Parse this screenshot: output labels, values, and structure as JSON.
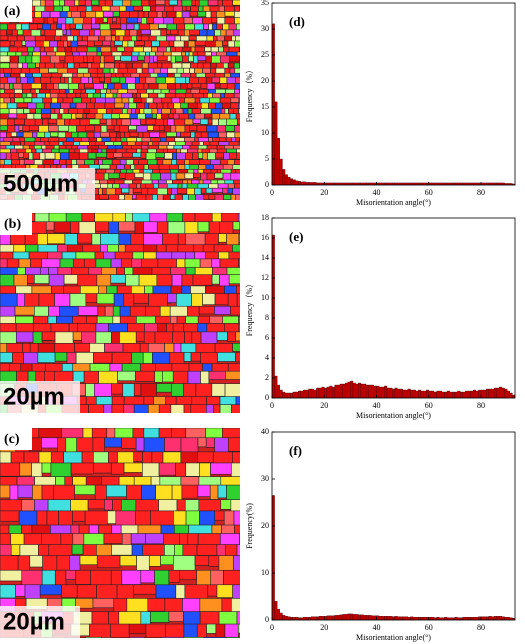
{
  "maps": [
    {
      "label": "(a)",
      "scale_bar": "500µm"
    },
    {
      "label": "(b)",
      "scale_bar": "20µm"
    },
    {
      "label": "(c)",
      "scale_bar": "20µm"
    }
  ],
  "chart_data": [
    {
      "type": "histogram",
      "panel": "(d)",
      "xlabel": "Misorientation angle(°)",
      "ylabel": "Frequency（%）",
      "color": "#c00000",
      "xlim": [
        0,
        93
      ],
      "xticks": [
        0,
        20,
        40,
        60,
        80
      ],
      "ylim": [
        0,
        35
      ],
      "yticks": [
        0,
        5,
        10,
        15,
        20,
        25,
        30,
        35
      ],
      "bins": [
        0,
        1,
        2,
        3,
        4,
        5,
        6,
        7,
        8,
        9,
        10,
        11,
        12,
        13,
        14,
        15,
        16,
        17,
        18,
        19,
        20,
        21,
        22,
        23,
        24,
        25,
        26,
        27,
        28,
        29,
        30,
        31,
        32,
        33,
        34,
        35,
        36,
        37,
        38,
        39,
        40,
        41,
        42,
        43,
        44,
        45,
        46,
        47,
        48,
        49,
        50,
        51,
        52,
        53,
        54,
        55,
        56,
        57,
        58,
        59,
        60,
        61,
        62,
        63,
        64,
        65,
        66,
        67,
        68,
        69,
        70,
        71,
        72,
        73,
        74,
        75,
        76,
        77,
        78,
        79,
        80,
        81,
        82,
        83,
        84,
        85,
        86,
        87,
        88,
        89,
        90,
        91,
        92,
        93
      ],
      "values": [
        31,
        16,
        9,
        5,
        3,
        2,
        1.5,
        1.2,
        1,
        0.8,
        0.7,
        0.6,
        0.6,
        0.5,
        0.5,
        0.5,
        0.5,
        0.4,
        0.4,
        0.4,
        0.4,
        0.4,
        0.4,
        0.4,
        0.4,
        0.4,
        0.4,
        0.4,
        0.4,
        0.4,
        0.4,
        0.4,
        0.4,
        0.4,
        0.4,
        0.4,
        0.4,
        0.4,
        0.4,
        0.4,
        0.4,
        0.4,
        0.4,
        0.4,
        0.4,
        0.4,
        0.4,
        0.4,
        0.4,
        0.4,
        0.4,
        0.4,
        0.4,
        0.4,
        0.4,
        0.4,
        0.4,
        0.4,
        0.4,
        0.4,
        0.4,
        0.4,
        0.4,
        0.4,
        0.4,
        0.4,
        0.4,
        0.4,
        0.4,
        0.4,
        0.4,
        0.4,
        0.4,
        0.4,
        0.4,
        0.4,
        0.4,
        0.4,
        0.4,
        0.4,
        0.4,
        0.4,
        0.4,
        0.4,
        0.4,
        0.4,
        0.4,
        0.4,
        0.4,
        0.3,
        0.3,
        0.3,
        0.2
      ]
    },
    {
      "type": "histogram",
      "panel": "(e)",
      "xlabel": "Misorientation angle(°)",
      "ylabel": "Frequency（%）",
      "color": "#c00000",
      "xlim": [
        0,
        93
      ],
      "xticks": [
        0,
        20,
        40,
        60,
        80
      ],
      "ylim": [
        0,
        18
      ],
      "yticks": [
        0,
        2,
        4,
        6,
        8,
        10,
        12,
        14,
        16,
        18
      ],
      "bins": [
        0,
        1,
        2,
        3,
        4,
        5,
        6,
        7,
        8,
        9,
        10,
        11,
        12,
        13,
        14,
        15,
        16,
        17,
        18,
        19,
        20,
        21,
        22,
        23,
        24,
        25,
        26,
        27,
        28,
        29,
        30,
        31,
        32,
        33,
        34,
        35,
        36,
        37,
        38,
        39,
        40,
        41,
        42,
        43,
        44,
        45,
        46,
        47,
        48,
        49,
        50,
        51,
        52,
        53,
        54,
        55,
        56,
        57,
        58,
        59,
        60,
        61,
        62,
        63,
        64,
        65,
        66,
        67,
        68,
        69,
        70,
        71,
        72,
        73,
        74,
        75,
        76,
        77,
        78,
        79,
        80,
        81,
        82,
        83,
        84,
        85,
        86,
        87,
        88,
        89,
        90,
        91,
        92,
        93
      ],
      "values": [
        16.3,
        2.2,
        1.3,
        0.8,
        0.6,
        0.5,
        0.5,
        0.5,
        0.6,
        0.6,
        0.7,
        0.7,
        0.8,
        0.8,
        0.9,
        0.9,
        0.8,
        1.0,
        1.0,
        1.1,
        1.0,
        1.1,
        1.2,
        1.1,
        1.3,
        1.3,
        1.4,
        1.4,
        1.5,
        1.6,
        1.7,
        1.5,
        1.4,
        1.5,
        1.4,
        1.4,
        1.3,
        1.3,
        1.3,
        1.2,
        1.2,
        1.1,
        1.1,
        1.2,
        1.0,
        1.0,
        0.9,
        1.0,
        0.9,
        0.9,
        0.8,
        0.8,
        0.9,
        0.8,
        0.8,
        0.7,
        0.8,
        0.7,
        0.7,
        0.8,
        0.7,
        0.7,
        0.6,
        0.7,
        0.7,
        0.6,
        0.6,
        0.7,
        0.6,
        0.6,
        0.6,
        0.7,
        0.6,
        0.6,
        0.7,
        0.7,
        0.7,
        0.8,
        0.7,
        0.8,
        0.8,
        0.8,
        0.9,
        0.9,
        0.9,
        1.0,
        1.0,
        1.1,
        1.0,
        0.9,
        0.7,
        0.5,
        0.3
      ]
    },
    {
      "type": "histogram",
      "panel": "(f)",
      "xlabel": "Misorientation angle(°)",
      "ylabel": "Frequency(%)",
      "color": "#c00000",
      "xlim": [
        0,
        93
      ],
      "xticks": [
        0,
        20,
        40,
        60,
        80
      ],
      "ylim": [
        0,
        40
      ],
      "yticks": [
        0,
        10,
        20,
        30,
        40
      ],
      "bins": [
        0,
        1,
        2,
        3,
        4,
        5,
        6,
        7,
        8,
        9,
        10,
        11,
        12,
        13,
        14,
        15,
        16,
        17,
        18,
        19,
        20,
        21,
        22,
        23,
        24,
        25,
        26,
        27,
        28,
        29,
        30,
        31,
        32,
        33,
        34,
        35,
        36,
        37,
        38,
        39,
        40,
        41,
        42,
        43,
        44,
        45,
        46,
        47,
        48,
        49,
        50,
        51,
        52,
        53,
        54,
        55,
        56,
        57,
        58,
        59,
        60,
        61,
        62,
        63,
        64,
        65,
        66,
        67,
        68,
        69,
        70,
        71,
        72,
        73,
        74,
        75,
        76,
        77,
        78,
        79,
        80,
        81,
        82,
        83,
        84,
        85,
        86,
        87,
        88,
        89,
        90,
        91,
        92,
        93
      ],
      "values": [
        26.5,
        4,
        2.3,
        1.5,
        1,
        0.8,
        0.7,
        0.6,
        0.6,
        0.6,
        0.5,
        0.5,
        0.6,
        0.6,
        0.6,
        0.7,
        0.7,
        0.7,
        0.8,
        0.8,
        0.8,
        0.9,
        0.9,
        0.9,
        1.0,
        1.0,
        1.1,
        1.2,
        1.2,
        1.3,
        1.3,
        1.2,
        1.2,
        1.1,
        1.1,
        1.0,
        1.0,
        1.0,
        0.9,
        0.9,
        0.9,
        0.8,
        0.8,
        0.8,
        0.8,
        0.8,
        0.7,
        0.8,
        0.7,
        0.7,
        0.7,
        0.7,
        0.6,
        0.7,
        0.6,
        0.6,
        0.6,
        0.6,
        0.6,
        0.6,
        0.6,
        0.6,
        0.5,
        0.6,
        0.5,
        0.5,
        0.6,
        0.5,
        0.5,
        0.5,
        0.6,
        0.5,
        0.5,
        0.6,
        0.6,
        0.6,
        0.6,
        0.6,
        0.6,
        0.7,
        0.7,
        0.7,
        0.7,
        0.8,
        0.7,
        0.8,
        0.8,
        0.8,
        0.7,
        0.6,
        0.6,
        0.5,
        0.4
      ]
    }
  ]
}
